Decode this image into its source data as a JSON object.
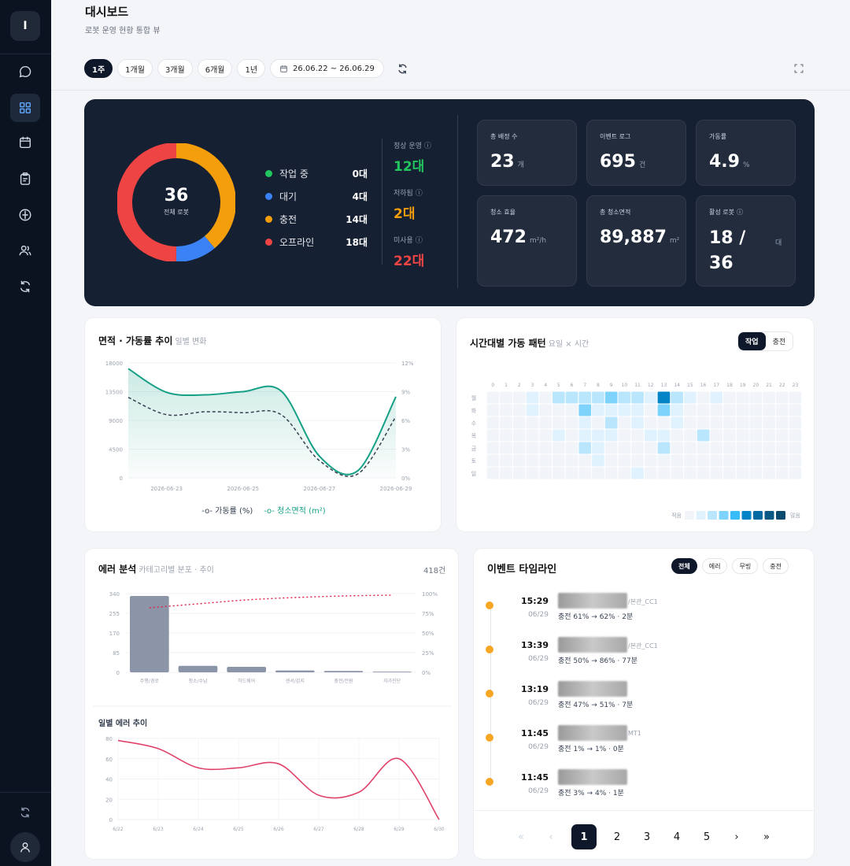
{
  "sidebar": {
    "logo": "I",
    "items": [
      {
        "icon": "chat-icon"
      },
      {
        "icon": "dashboard-grid-icon",
        "active": true
      },
      {
        "icon": "calendar-icon"
      },
      {
        "icon": "clipboard-icon"
      },
      {
        "icon": "compass-icon"
      },
      {
        "icon": "users-icon"
      },
      {
        "icon": "refresh-icon"
      }
    ]
  },
  "header": {
    "title": "대시보드",
    "subtitle": "로봇 운영 현황 통합 뷰",
    "periods": [
      "1주",
      "1개월",
      "3개월",
      "6개월",
      "1년"
    ],
    "active_period": "1주",
    "date_range": "26.06.22 ~ 26.06.29"
  },
  "hero": {
    "donut": {
      "total": "36",
      "label": "전체 로봇"
    },
    "legend": [
      {
        "label": "작업 중",
        "value": "0대",
        "color": "#22c55e",
        "count": 0
      },
      {
        "label": "대기",
        "value": "4대",
        "color": "#3b82f6",
        "count": 4
      },
      {
        "label": "충전",
        "value": "14대",
        "color": "#f59e0b",
        "count": 14
      },
      {
        "label": "오프라인",
        "value": "18대",
        "color": "#ef4444",
        "count": 18
      }
    ],
    "status": [
      {
        "label": "정상 운영",
        "value": "12대",
        "color": "#22c55e"
      },
      {
        "label": "저하됨",
        "value": "2대",
        "color": "#f59e0b"
      },
      {
        "label": "미사용",
        "value": "22대",
        "color": "#ef4444"
      }
    ],
    "kpis": [
      {
        "label": "총 배정 수",
        "value": "23",
        "unit": "개"
      },
      {
        "label": "이벤트 로그",
        "value": "695",
        "unit": "건"
      },
      {
        "label": "가동률",
        "value": "4.9",
        "unit": "%"
      },
      {
        "label": "청소 효율",
        "value": "472",
        "unit": "m²/h"
      },
      {
        "label": "총 청소면적",
        "value": "89,887",
        "unit": "m²"
      },
      {
        "label": "활성 로봇",
        "value": "18 /",
        "value2": "36",
        "unit": "대"
      }
    ]
  },
  "area_trend": {
    "title": "면적 · 가동률 추이",
    "subtitle": "일별 변화",
    "legend_rate": "가동률 (%)",
    "legend_area": "청소면적 (m²)",
    "chart_data": {
      "type": "line",
      "x": [
        "2026-06-22",
        "2026-06-23",
        "2026-06-24",
        "2026-06-25",
        "2026-06-26",
        "2026-06-27",
        "2026-06-28",
        "2026-06-29"
      ],
      "x_ticks": [
        "2026-06-23",
        "2026-06-25",
        "2026-06-27",
        "2026-06-29"
      ],
      "y_left_ticks": [
        "18000",
        "13500",
        "9000",
        "4500",
        "0"
      ],
      "y_right_ticks": [
        "12%",
        "9%",
        "6%",
        "3%",
        "0%"
      ],
      "ylim_left": [
        0,
        18000
      ],
      "ylim_right": [
        0,
        12
      ],
      "series": [
        {
          "name": "청소면적 (m²)",
          "axis": "left",
          "values": [
            17100,
            13400,
            13000,
            13500,
            13600,
            3400,
            1100,
            12700
          ]
        },
        {
          "name": "가동률 (%)",
          "axis": "right",
          "values": [
            8.4,
            6.6,
            6.9,
            6.8,
            6.6,
            1.8,
            0.4,
            6.4
          ]
        }
      ]
    }
  },
  "heatmap": {
    "title": "시간대별 가동 패턴",
    "subtitle": "요일 × 시간",
    "toggle": [
      "작업",
      "충전"
    ],
    "hours": [
      "0",
      "1",
      "2",
      "3",
      "4",
      "5",
      "6",
      "7",
      "8",
      "9",
      "10",
      "11",
      "12",
      "13",
      "14",
      "15",
      "16",
      "17",
      "18",
      "19",
      "20",
      "21",
      "22",
      "23"
    ],
    "days": [
      "월",
      "화",
      "수",
      "목",
      "금",
      "토",
      "일"
    ],
    "legend_low": "적음",
    "legend_high": "많음",
    "chart_data": {
      "type": "heatmap",
      "rows": [
        [
          0,
          0,
          0,
          1,
          0,
          2,
          2,
          2,
          2,
          3,
          2,
          2,
          1,
          5,
          2,
          1,
          0,
          1,
          0,
          0,
          0,
          0,
          0,
          0
        ],
        [
          0,
          0,
          0,
          1,
          0,
          0,
          0,
          3,
          1,
          1,
          1,
          1,
          0,
          3,
          1,
          0,
          0,
          0,
          0,
          0,
          0,
          0,
          0,
          0
        ],
        [
          0,
          0,
          0,
          0,
          0,
          0,
          0,
          1,
          0,
          2,
          0,
          1,
          0,
          0,
          1,
          0,
          0,
          0,
          0,
          0,
          0,
          0,
          0,
          0
        ],
        [
          0,
          0,
          0,
          0,
          0,
          1,
          0,
          1,
          1,
          1,
          0,
          0,
          1,
          1,
          0,
          0,
          2,
          0,
          0,
          0,
          0,
          0,
          0,
          0
        ],
        [
          0,
          0,
          0,
          0,
          0,
          0,
          0,
          2,
          1,
          0,
          0,
          0,
          0,
          2,
          0,
          0,
          0,
          0,
          0,
          0,
          0,
          0,
          0,
          0
        ],
        [
          0,
          0,
          0,
          0,
          0,
          0,
          0,
          0,
          1,
          0,
          0,
          0,
          0,
          0,
          0,
          0,
          0,
          0,
          0,
          0,
          0,
          0,
          0,
          0
        ],
        [
          0,
          0,
          0,
          0,
          0,
          0,
          0,
          0,
          0,
          0,
          0,
          1,
          0,
          0,
          0,
          0,
          0,
          0,
          0,
          0,
          0,
          0,
          0,
          0
        ]
      ]
    }
  },
  "error": {
    "title": "에러 분석",
    "subtitle": "카테고리별 분포 · 추이",
    "count": "418건",
    "daily_title": "일별 에러 추이",
    "chart_data": [
      {
        "type": "bar",
        "categories": [
          "주행/경로",
          "청소/수납",
          "하드웨어",
          "센서/감지",
          "충전/전원",
          "자가진단"
        ],
        "values": [
          330,
          28,
          24,
          8,
          6,
          3
        ],
        "pareto_pct": [
          82,
          87,
          92,
          95,
          97,
          98
        ],
        "y_left_ticks": [
          "340",
          "255",
          "170",
          "85",
          "0"
        ],
        "y_right_ticks": [
          "100%",
          "75%",
          "50%",
          "25%",
          "0%"
        ],
        "ylim": [
          0,
          340
        ]
      },
      {
        "type": "line",
        "x": [
          "6/22",
          "6/23",
          "6/24",
          "6/25",
          "6/26",
          "6/27",
          "6/28",
          "6/29",
          "6/30"
        ],
        "values": [
          78,
          70,
          51,
          51,
          55,
          24,
          27,
          60,
          0
        ],
        "y_ticks": [
          "80",
          "60",
          "40",
          "20",
          "0"
        ],
        "ylim": [
          0,
          80
        ]
      }
    ]
  },
  "timeline": {
    "title": "이벤트 타임라인",
    "filters": [
      "전체",
      "에러",
      "무빙",
      "충전"
    ],
    "events": [
      {
        "time": "15:29",
        "date": "06/29",
        "tag": "/본관_CC1",
        "desc": "충전 61% → 62% · 2분"
      },
      {
        "time": "13:39",
        "date": "06/29",
        "tag": "/본관_CC1",
        "desc": "충전 50% → 86% · 77분"
      },
      {
        "time": "13:19",
        "date": "06/29",
        "tag": "",
        "desc": "충전 47% → 51% · 7분"
      },
      {
        "time": "11:45",
        "date": "06/29",
        "tag": "MT1",
        "desc": "충전 1% → 1% · 0분"
      },
      {
        "time": "11:45",
        "date": "06/29",
        "tag": "",
        "desc": "충전 3% → 4% · 1분"
      }
    ],
    "pagination": {
      "first": "«",
      "prev": "‹",
      "pages": [
        "1",
        "2",
        "3",
        "4",
        "5"
      ],
      "current": "1",
      "next": "›",
      "last": "»"
    }
  }
}
